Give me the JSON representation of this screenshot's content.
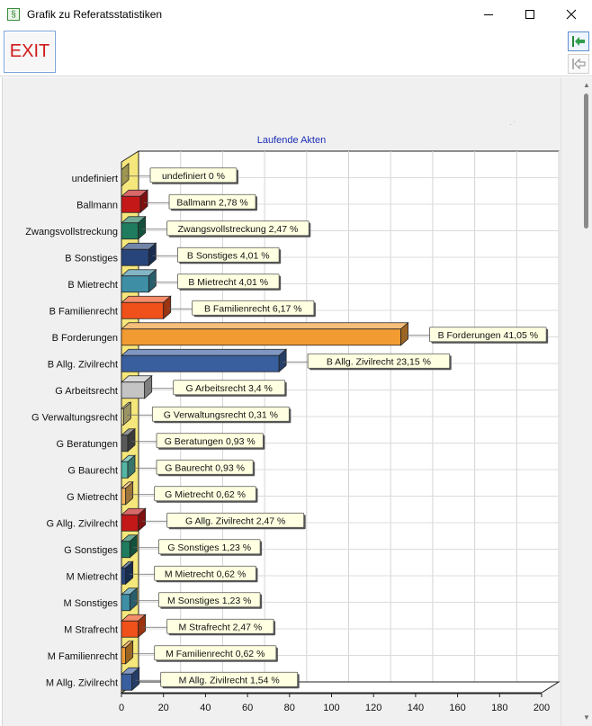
{
  "window": {
    "title": "Grafik zu Referatsstatistiken",
    "icon": "document-app-icon"
  },
  "window_controls": {
    "minimize": "minimize-icon",
    "maximize": "maximize-icon",
    "close": "close-icon"
  },
  "toolbar": {
    "exit_label": "EXIT",
    "first_icon": "arrow-to-first-icon",
    "prev_icon": "arrow-back-icon"
  },
  "chart_data": {
    "type": "bar",
    "orientation": "horizontal",
    "title": "Laufende Akten",
    "xlim": [
      0,
      200
    ],
    "x_ticks": [
      "0",
      "20",
      "40",
      "60",
      "80",
      "100",
      "120",
      "140",
      "160",
      "180",
      "200"
    ],
    "grid": true,
    "categories": [
      "undefiniert",
      "Ballmann",
      "Zwangsvollstreckung",
      "B Sonstiges",
      "B Mietrecht",
      "B Familienrecht",
      "B Forderungen",
      "B Allg. Zivilrecht",
      "G Arbeitsrecht",
      "G Verwaltungsrecht",
      "G Beratungen",
      "G Baurecht",
      "G Mietrecht",
      "G Allg. Zivilrecht",
      "G Sonstiges",
      "M Mietrecht",
      "M Sonstiges",
      "M Strafrecht",
      "M Familienrecht",
      "M Allg. Zivilrecht"
    ],
    "values": [
      0,
      9,
      8,
      13,
      13,
      20,
      133,
      75,
      11,
      1,
      3,
      3,
      2,
      8,
      4,
      2,
      4,
      8,
      2,
      5
    ],
    "data_labels": [
      "undefiniert 0 %",
      "Ballmann 2,78 %",
      "Zwangsvollstreckung 2,47 %",
      "B Sonstiges 4,01 %",
      "B Mietrecht 4,01 %",
      "B Familienrecht 6,17 %",
      "B Forderungen 41,05 %",
      "B Allg. Zivilrecht 23,15 %",
      "G Arbeitsrecht 3,4 %",
      "G Verwaltungsrecht 0,31 %",
      "G Beratungen 0,93 %",
      "G Baurecht 0,93 %",
      "G Mietrecht 0,62 %",
      "G Allg. Zivilrecht 2,47 %",
      "G Sonstiges 1,23 %",
      "M Mietrecht 0,62 %",
      "M Sonstiges 1,23 %",
      "M Strafrecht 2,47 %",
      "M Familienrecht 0,62 %",
      "M Allg. Zivilrecht 1,54 %"
    ],
    "colors": [
      "#f5e77c",
      "#c41818",
      "#1f7c5e",
      "#27457a",
      "#3e8fa6",
      "#f0501a",
      "#f29b33",
      "#3a5f9f",
      "#c4c4c4",
      "#efe39a",
      "#5a5a5a",
      "#55b6a4",
      "#f1b55b",
      "#c41818",
      "#1f7c5e",
      "#27457a",
      "#3e8fa6",
      "#f0501a",
      "#f29b33",
      "#3a5f9f"
    ],
    "wall_color": "#f5e77c"
  }
}
